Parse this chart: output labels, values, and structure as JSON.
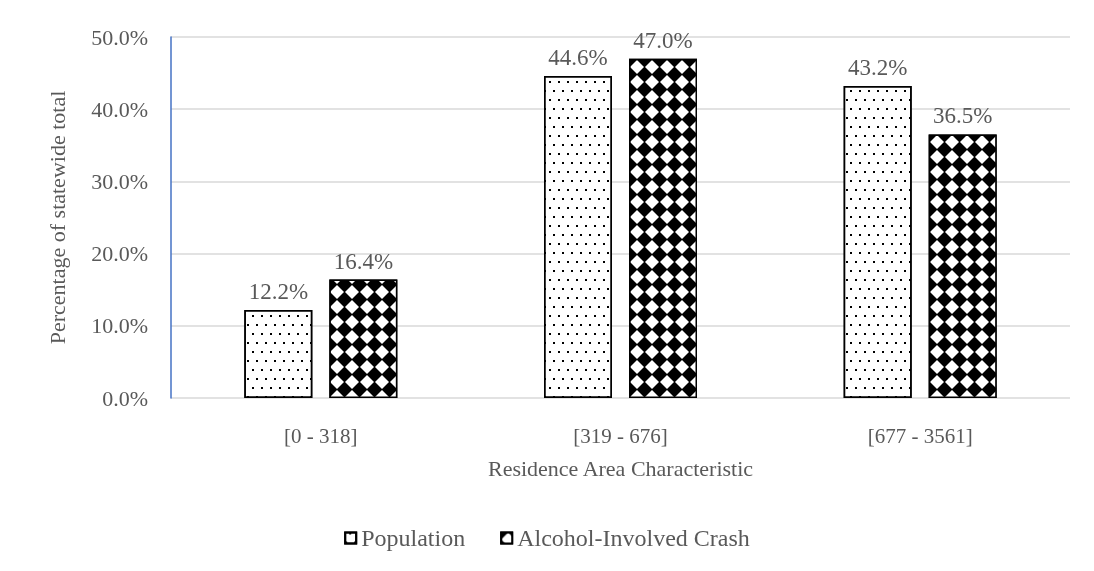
{
  "chart_data": {
    "type": "bar",
    "xlabel": "Residence Area Characteristic",
    "ylabel": "Percentage of statewide total",
    "categories": [
      "[0 - 318]",
      "[319 - 676]",
      "[677 - 3561]"
    ],
    "series": [
      {
        "name": "Population",
        "color": "#ffffff",
        "values": [
          12.2,
          44.6,
          43.2
        ],
        "value_labels": [
          "12.2%",
          "44.6%",
          "43.2%"
        ]
      },
      {
        "name": "Alcohol-Involved Crash",
        "color": "#000000",
        "values": [
          16.4,
          47.0,
          36.5
        ],
        "value_labels": [
          "16.4%",
          "47.0%",
          "36.5%"
        ]
      }
    ],
    "ylim": [
      0,
      50
    ],
    "yticks": [
      {
        "value": 0,
        "label": "0.0%"
      },
      {
        "value": 10,
        "label": "10.0%"
      },
      {
        "value": 20,
        "label": "20.0%"
      },
      {
        "value": 30,
        "label": "30.0%"
      },
      {
        "value": 40,
        "label": "40.0%"
      },
      {
        "value": 50,
        "label": "50.0%"
      }
    ],
    "grid": "y",
    "legend": "bottom"
  }
}
